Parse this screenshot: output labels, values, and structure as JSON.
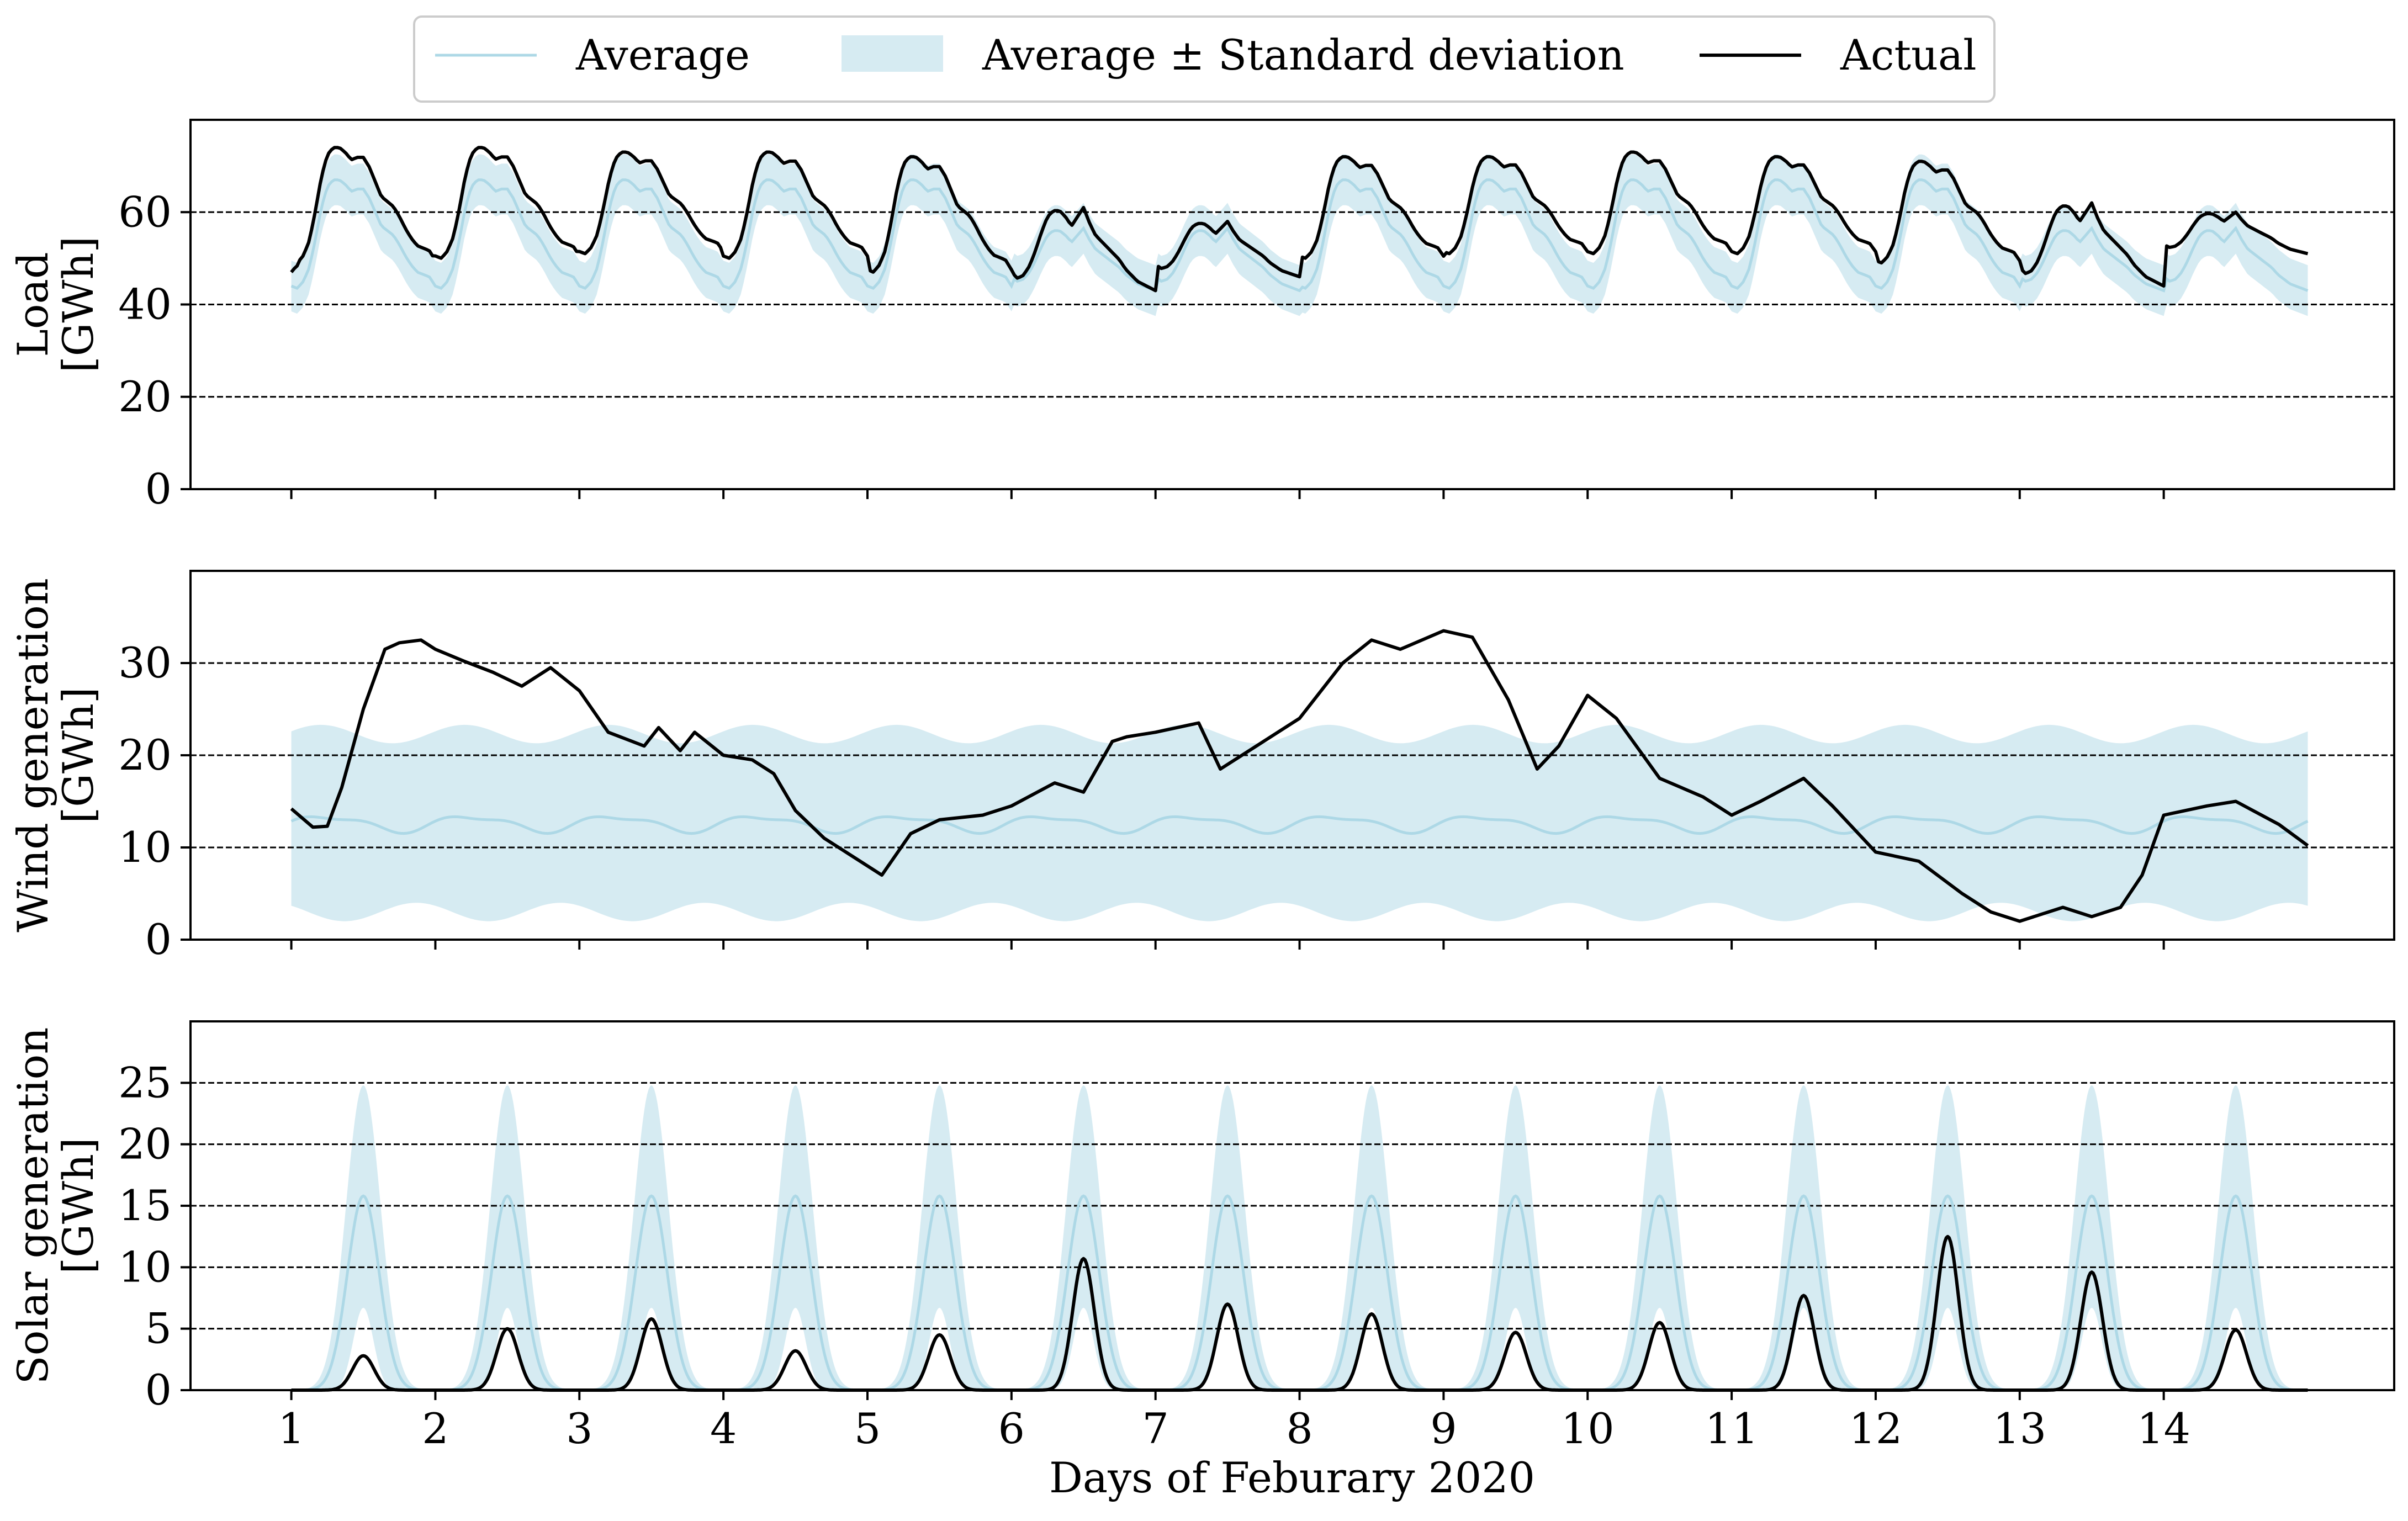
{
  "legend": {
    "items": [
      {
        "label": "Average",
        "kind": "line"
      },
      {
        "label": "Average ± Standard deviation",
        "kind": "band"
      },
      {
        "label": "Actual",
        "kind": "line"
      }
    ]
  },
  "colors": {
    "average": "#add8e6",
    "band": "#add8e6",
    "actual": "#000000",
    "grid": "#000000"
  },
  "xlabel": "Days of Feburary 2020",
  "chart_data": [
    {
      "type": "line",
      "title": "",
      "ylabel_lines": [
        "Load",
        "[GWh]"
      ],
      "xlim": [
        0.3,
        15.6
      ],
      "ylim": [
        0,
        80
      ],
      "yticks": [
        "0",
        "20",
        "40",
        "60"
      ],
      "xticks": [
        "1",
        "2",
        "3",
        "4",
        "5",
        "6",
        "7",
        "8",
        "9",
        "10",
        "11",
        "12",
        "13",
        "14"
      ],
      "grid": "horizontal dashed at 20, 40, 60",
      "x_hours_from_day1": [
        0,
        1,
        2,
        3,
        4,
        5,
        6,
        7,
        8,
        9,
        10,
        11,
        12,
        13,
        14,
        15,
        16,
        17,
        18,
        19,
        20,
        21,
        22,
        23,
        24
      ],
      "series": [
        {
          "name": "Average",
          "weekday_profile": [
            44,
            43.5,
            45,
            48,
            54,
            61,
            65.5,
            67,
            67,
            66,
            64.5,
            65,
            65,
            63,
            60,
            57,
            56,
            55,
            53,
            50.5,
            48.5,
            47,
            46.5,
            46,
            44
          ],
          "weekend_profile": [
            46,
            45,
            45.5,
            47,
            49.5,
            52.5,
            55,
            56,
            56,
            55,
            53.5,
            55,
            56.5,
            54,
            52,
            51,
            50,
            49,
            48,
            46.5,
            45.5,
            44.5,
            44,
            43.5,
            43
          ]
        },
        {
          "name": "Average ± Standard deviation",
          "spread": 5.5
        },
        {
          "name": "Actual",
          "days": [
            {
              "day": 1,
              "peak": 74,
              "night": 49,
              "type": "weekday"
            },
            {
              "day": 2,
              "peak": 74,
              "night": 50,
              "type": "weekday"
            },
            {
              "day": 3,
              "peak": 73,
              "night": 51,
              "type": "weekday"
            },
            {
              "day": 4,
              "peak": 73,
              "night": 50,
              "type": "weekday"
            },
            {
              "day": 5,
              "peak": 72,
              "night": 47,
              "type": "weekday"
            },
            {
              "day": 6,
              "peak": 61,
              "night": 43,
              "type": "weekend"
            },
            {
              "day": 7,
              "peak": 58,
              "night": 46,
              "type": "weekend"
            },
            {
              "day": 8,
              "peak": 72,
              "night": 50,
              "type": "weekday"
            },
            {
              "day": 9,
              "peak": 72,
              "night": 51,
              "type": "weekday"
            },
            {
              "day": 10,
              "peak": 73,
              "night": 51,
              "type": "weekday"
            },
            {
              "day": 11,
              "peak": 72,
              "night": 51,
              "type": "weekday"
            },
            {
              "day": 12,
              "peak": 71,
              "night": 49,
              "type": "weekday"
            },
            {
              "day": 13,
              "peak": 62,
              "night": 44,
              "type": "weekend"
            },
            {
              "day": 14,
              "peak": 60,
              "night": 51,
              "type": "weekend"
            }
          ],
          "start_value": 47
        }
      ]
    },
    {
      "type": "line",
      "title": "",
      "ylabel_lines": [
        "Wind generation",
        "[GWh]"
      ],
      "xlim": [
        0.3,
        15.6
      ],
      "ylim": [
        0,
        40
      ],
      "yticks": [
        "0",
        "10",
        "20",
        "30"
      ],
      "xticks": [
        "1",
        "2",
        "3",
        "4",
        "5",
        "6",
        "7",
        "8",
        "9",
        "10",
        "11",
        "12",
        "13",
        "14"
      ],
      "grid": "horizontal dashed at 10, 20, 30",
      "series": [
        {
          "name": "Average",
          "x": [
            1.0,
            15.0
          ],
          "mean": 12.6,
          "wiggle": 0.8
        },
        {
          "name": "Average ± Standard deviation",
          "x": [
            1.0,
            15.0
          ],
          "upper_mean": 22.3,
          "lower_mean": 3.0,
          "wiggle": 1.0
        },
        {
          "name": "Actual",
          "x": [
            1.0,
            1.15,
            1.25,
            1.35,
            1.5,
            1.65,
            1.75,
            1.9,
            2.0,
            2.2,
            2.4,
            2.6,
            2.8,
            3.0,
            3.2,
            3.45,
            3.55,
            3.7,
            3.8,
            4.0,
            4.2,
            4.35,
            4.5,
            4.7,
            4.9,
            5.1,
            5.3,
            5.5,
            5.8,
            6.0,
            6.3,
            6.5,
            6.7,
            6.8,
            7.0,
            7.3,
            7.45,
            7.7,
            8.0,
            8.2,
            8.3,
            8.5,
            8.7,
            9.0,
            9.2,
            9.45,
            9.65,
            9.8,
            10.0,
            10.2,
            10.5,
            10.8,
            11.0,
            11.2,
            11.5,
            11.7,
            12.0,
            12.3,
            12.6,
            12.8,
            13.0,
            13.3,
            13.5,
            13.7,
            13.85,
            14.0,
            14.3,
            14.5,
            14.8,
            15.0
          ],
          "y": [
            14.2,
            12.2,
            12.3,
            16.5,
            25,
            31.5,
            32.2,
            32.5,
            31.5,
            30.2,
            29,
            27.5,
            29.5,
            27,
            22.5,
            21,
            23,
            20.5,
            22.5,
            20,
            19.5,
            18,
            14,
            11,
            9,
            7,
            11.5,
            13,
            13.5,
            14.5,
            17,
            16,
            21.5,
            22,
            22.5,
            23.5,
            18.5,
            21,
            24,
            28,
            30,
            32.5,
            31.5,
            33.5,
            32.8,
            26,
            18.5,
            21,
            26.5,
            24,
            17.5,
            15.5,
            13.5,
            15,
            17.5,
            14.5,
            9.5,
            8.5,
            5,
            3,
            2,
            3.5,
            2.5,
            3.5,
            7,
            13.5,
            14.5,
            15,
            12.5,
            10.2
          ]
        }
      ]
    },
    {
      "type": "line",
      "title": "",
      "ylabel_lines": [
        "Solar generation",
        "[GWh]"
      ],
      "xlim": [
        0.3,
        15.6
      ],
      "ylim": [
        0,
        30
      ],
      "yticks": [
        "0",
        "5",
        "10",
        "15",
        "20",
        "25"
      ],
      "xticks": [
        "1",
        "2",
        "3",
        "4",
        "5",
        "6",
        "7",
        "8",
        "9",
        "10",
        "11",
        "12",
        "13",
        "14"
      ],
      "grid": "horizontal dashed at 5, 10, 15, 20, 25",
      "series": [
        {
          "name": "Average",
          "daily_peak": 15.8
        },
        {
          "name": "Average ± Standard deviation",
          "upper_peak": 24.8,
          "lower_peak": 6.7
        },
        {
          "name": "Actual",
          "daily_peaks": [
            2.8,
            5.0,
            5.8,
            3.2,
            4.5,
            10.7,
            7.0,
            6.2,
            4.7,
            5.5,
            7.7,
            12.5,
            9.6,
            4.9
          ]
        }
      ]
    }
  ]
}
